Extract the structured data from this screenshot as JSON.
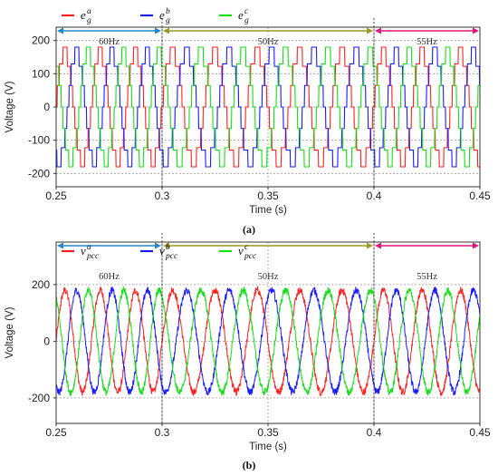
{
  "chart_data": [
    {
      "id": "a",
      "type": "line",
      "caption": "(a)",
      "xlabel": "Time (s)",
      "ylabel": "Voltage (V)",
      "xlim": [
        0.25,
        0.45
      ],
      "ylim": [
        -240,
        240
      ],
      "xticks": [
        "0.25",
        "0.3",
        "0.35",
        "0.4",
        "0.45"
      ],
      "yticks": [
        "-200",
        "-100",
        "0",
        "100",
        "200"
      ],
      "grid": true,
      "legend_position": "top-left",
      "waveform": "stepped",
      "amplitude": 180,
      "series": [
        {
          "base": "e",
          "sub": "g",
          "sup": "a",
          "color": "#ff1f1f",
          "phase_deg": 0
        },
        {
          "base": "e",
          "sub": "g",
          "sup": "b",
          "color": "#1a1aff",
          "phase_deg": -120
        },
        {
          "base": "e",
          "sub": "g",
          "sup": "c",
          "color": "#14e014",
          "phase_deg": 120
        }
      ],
      "segments": [
        {
          "label": "60Hz",
          "t_start": 0.25,
          "t_end": 0.3,
          "freq_hz": 60,
          "color": "#2486c8"
        },
        {
          "label": "50Hz",
          "t_start": 0.3,
          "t_end": 0.4,
          "freq_hz": 50,
          "color": "#9a9a1e"
        },
        {
          "label": "55Hz",
          "t_start": 0.4,
          "t_end": 0.45,
          "freq_hz": 55,
          "color": "#e0177c"
        }
      ]
    },
    {
      "id": "b",
      "type": "line",
      "caption": "(b)",
      "xlabel": "Time (s)",
      "ylabel": "Voltage (V)",
      "xlim": [
        0.25,
        0.45
      ],
      "ylim": [
        -290,
        350
      ],
      "xticks": [
        "0.25",
        "0.3",
        "0.35",
        "0.4",
        "0.45"
      ],
      "yticks": [
        "-200",
        "0",
        "200"
      ],
      "grid": true,
      "legend_position": "top-left",
      "waveform": "sinusoid",
      "amplitude": 180,
      "series": [
        {
          "base": "v",
          "sub": "pcc",
          "sup": "a",
          "color": "#ff1f1f",
          "phase_deg": 0
        },
        {
          "base": "v",
          "sub": "pcc",
          "sup": "b",
          "color": "#1a1aff",
          "phase_deg": -120
        },
        {
          "base": "v",
          "sub": "pcc",
          "sup": "c",
          "color": "#14e014",
          "phase_deg": 120
        }
      ],
      "segments": [
        {
          "label": "60Hz",
          "t_start": 0.25,
          "t_end": 0.3,
          "freq_hz": 60,
          "color": "#2486c8"
        },
        {
          "label": "50Hz",
          "t_start": 0.3,
          "t_end": 0.4,
          "freq_hz": 50,
          "color": "#9a9a1e"
        },
        {
          "label": "55Hz",
          "t_start": 0.4,
          "t_end": 0.45,
          "freq_hz": 55,
          "color": "#e0177c"
        }
      ]
    }
  ]
}
